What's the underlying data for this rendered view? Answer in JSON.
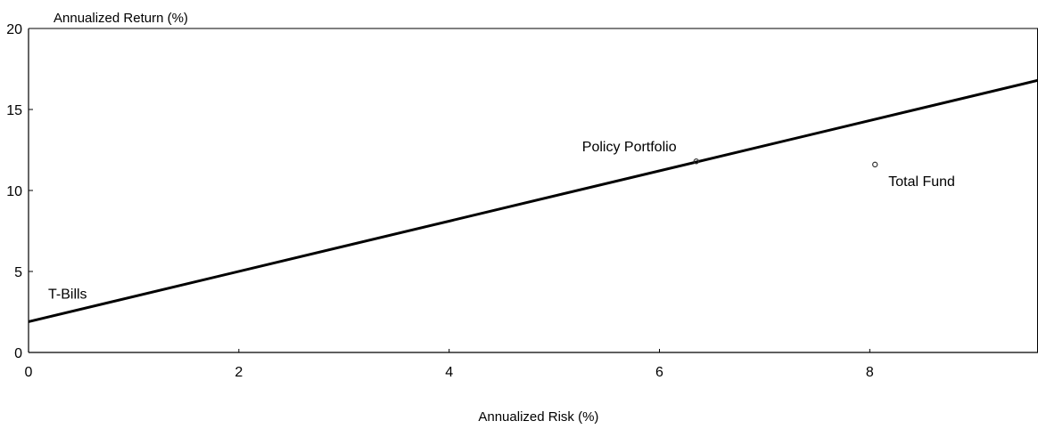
{
  "chart_data": {
    "type": "scatter",
    "title": "",
    "xlabel": "Annualized Risk (%)",
    "ylabel": "Annualized Return (%)",
    "xlim": [
      0,
      9.6
    ],
    "ylim": [
      0,
      20
    ],
    "xticks": [
      0,
      2,
      4,
      6,
      8
    ],
    "yticks": [
      0,
      5,
      10,
      15,
      20
    ],
    "grid": false,
    "legend": "none",
    "line": {
      "x": [
        0,
        9.6
      ],
      "y": [
        1.9,
        16.8
      ]
    },
    "points": [
      {
        "label": "T-Bills",
        "x": 0,
        "y": 1.9
      },
      {
        "label": "Policy Portfolio",
        "x": 6.35,
        "y": 11.8
      },
      {
        "label": "Total Fund",
        "x": 8.05,
        "y": 11.6
      }
    ]
  }
}
